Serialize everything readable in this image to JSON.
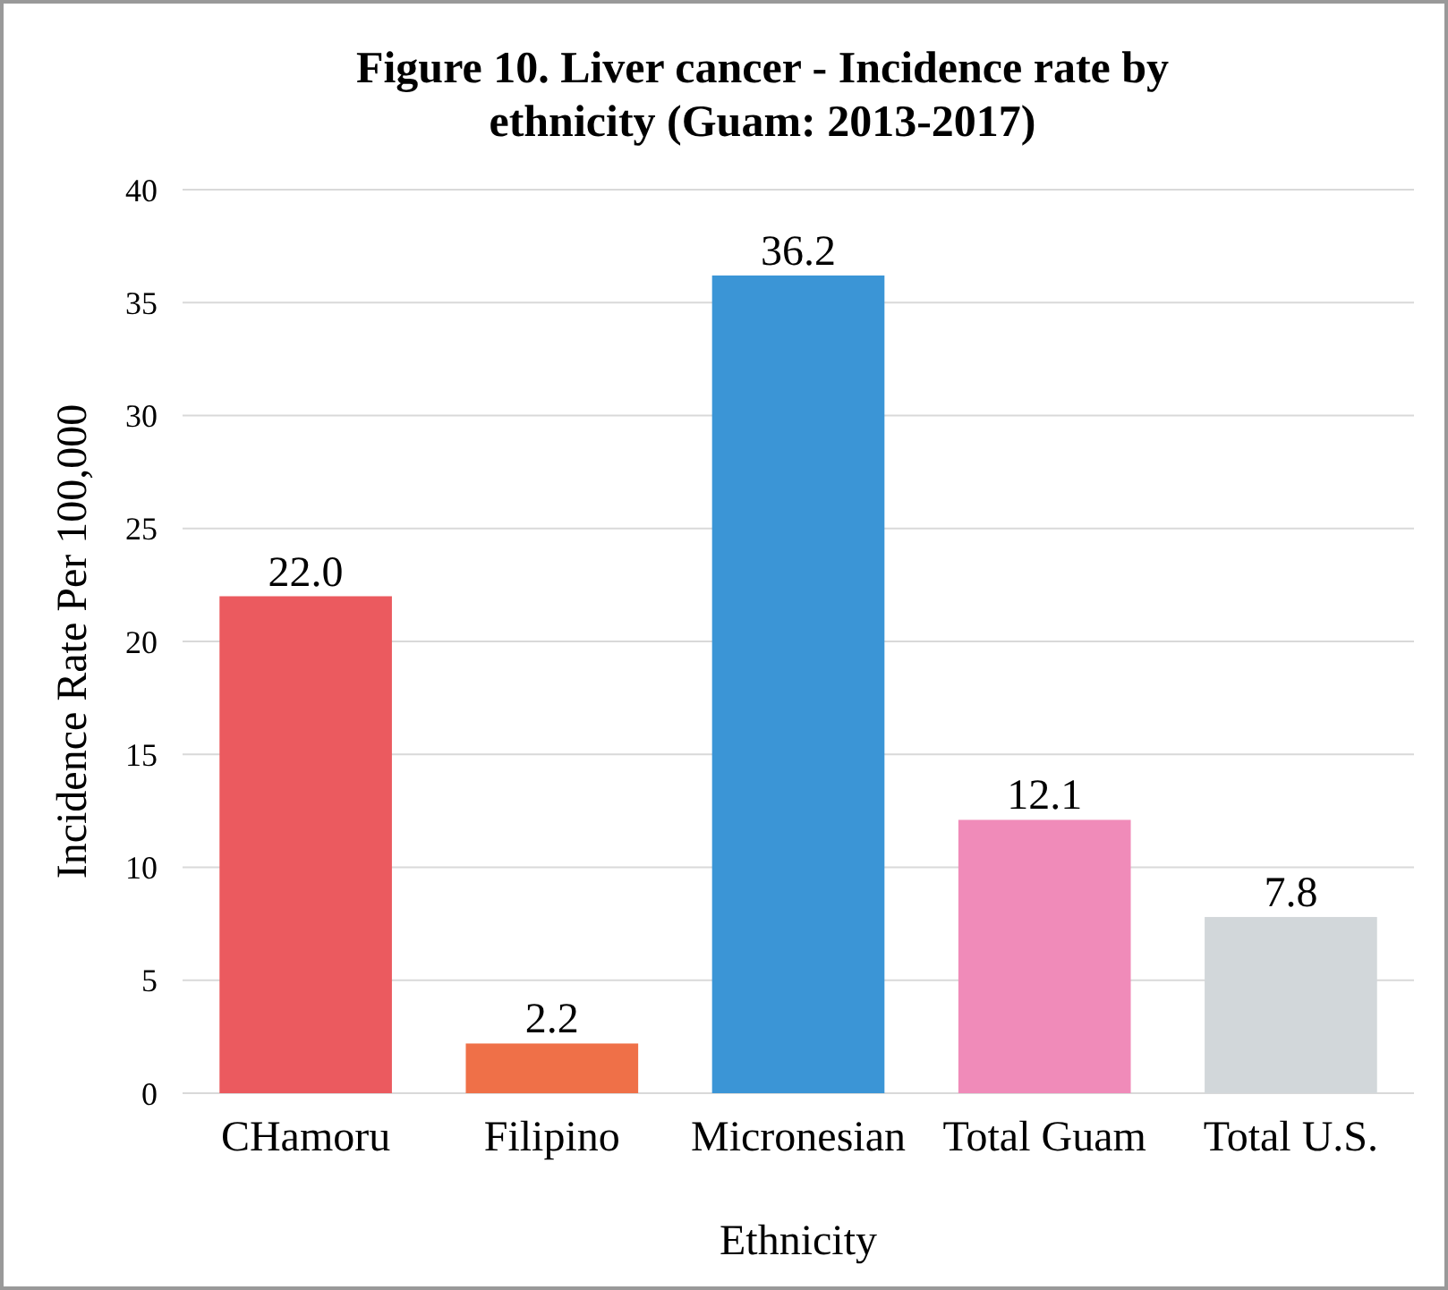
{
  "chart_data": {
    "type": "bar",
    "title": "Figure 10. Liver cancer - Incidence rate by ethnicity (Guam: 2013-2017)",
    "xlabel": "Ethnicity",
    "ylabel": "Incidence Rate Per 100,000",
    "categories": [
      "CHamoru",
      "Filipino",
      "Micronesian",
      "Total Guam",
      "Total U.S."
    ],
    "values": [
      22.0,
      2.2,
      36.2,
      12.1,
      7.8
    ],
    "colors": [
      "#eb5a5f",
      "#ef7048",
      "#3b95d6",
      "#f08bb9",
      "#d2d7da"
    ],
    "value_labels": [
      "22.0",
      "2.2",
      "36.2",
      "12.1",
      "7.8"
    ],
    "ylim": [
      0,
      40
    ],
    "yticks": [
      0,
      5,
      10,
      15,
      20,
      25,
      30,
      35,
      40
    ],
    "grid": "y"
  }
}
